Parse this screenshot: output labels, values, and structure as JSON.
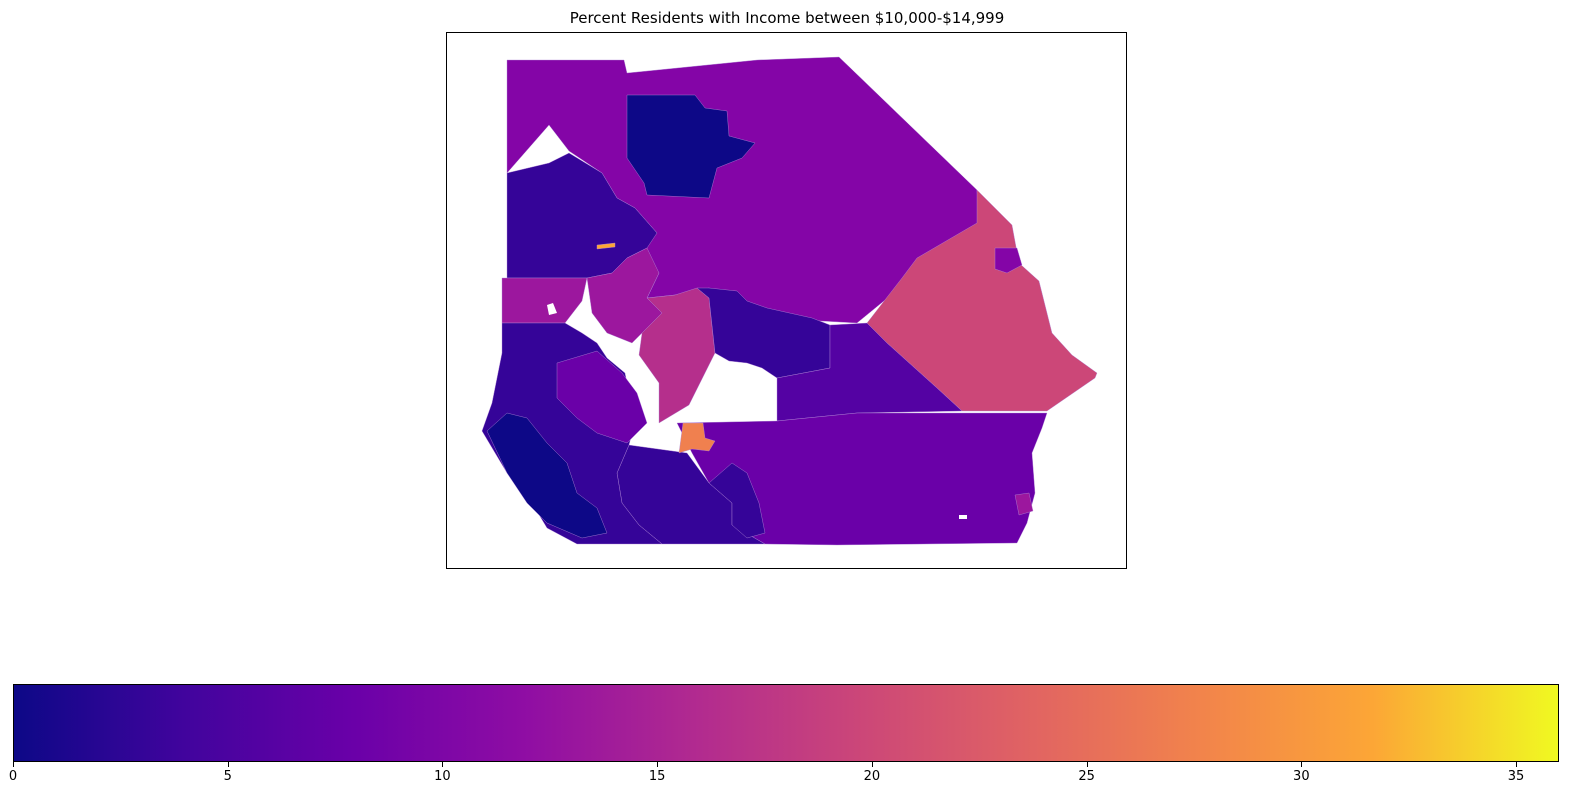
{
  "title": "Percent Residents with Income between $10,000-$14,999",
  "colorbar": {
    "colormap": "plasma",
    "min": 0,
    "max": 36,
    "ticks": [
      "0",
      "5",
      "10",
      "15",
      "20",
      "25",
      "30",
      "35"
    ]
  },
  "colors": {
    "p0": "#0d0887",
    "p3": "#350498",
    "p6": "#5402a3",
    "p8": "#6a00a8",
    "p10": "#8405a7",
    "p12": "#9c179e",
    "p15": "#b52f8c",
    "p18": "#cc4778",
    "p22": "#e16462",
    "p25": "#f0804f",
    "p30": "#fca636"
  }
}
